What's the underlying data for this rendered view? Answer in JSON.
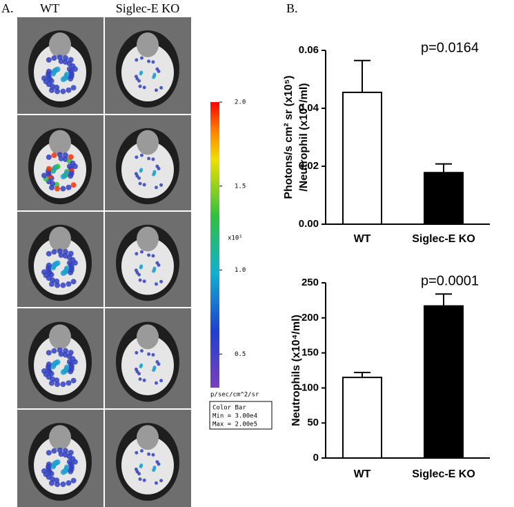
{
  "panel_a": {
    "label": "A.",
    "columns": [
      "WT",
      "Siglec-E KO"
    ],
    "colorbar": {
      "lim": [
        0.3,
        2.0
      ],
      "ticks": [
        {
          "value": 2.0,
          "label": "2.0"
        },
        {
          "value": 1.5,
          "label": "1.5"
        },
        {
          "value": 1.0,
          "label": "1.0"
        },
        {
          "value": 0.5,
          "label": "0.5"
        }
      ],
      "multiplier": "x10⁵",
      "unit": "p/sec/cm^2/sr",
      "legend": [
        "Color Bar",
        "Min = 3.00e4",
        "Max = 2.00e5"
      ]
    }
  },
  "panel_b": {
    "label": "B."
  },
  "chart_data": [
    {
      "type": "bar",
      "annotation": "p=0.0164",
      "ylabel": [
        "Photons/s cm² sr (x10⁵)",
        "/Neutrophil (x10⁴/ml)"
      ],
      "categories": [
        "WT",
        "Siglec-E KO"
      ],
      "values": [
        0.0455,
        0.0178
      ],
      "errors": [
        0.011,
        0.003
      ],
      "colors": [
        "#ffffff",
        "#000000"
      ],
      "ylim": [
        0,
        0.06
      ],
      "yticks": [
        {
          "value": 0,
          "label": "0.00"
        },
        0.02,
        0.04,
        0.06
      ]
    },
    {
      "type": "bar",
      "annotation": "p=0.0001",
      "ylabel": [
        "Neutrophils (x10⁴/ml)"
      ],
      "categories": [
        "WT",
        "Siglec-E KO"
      ],
      "values": [
        115,
        217
      ],
      "errors": [
        7,
        17
      ],
      "colors": [
        "#ffffff",
        "#000000"
      ],
      "ylim": [
        0,
        250
      ],
      "yticks": [
        0,
        50,
        100,
        150,
        200,
        250
      ]
    }
  ]
}
